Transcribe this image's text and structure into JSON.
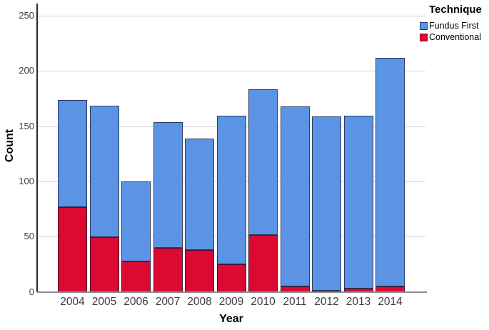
{
  "chart_data": {
    "type": "bar",
    "stacked": true,
    "title": "",
    "xlabel": "Year",
    "ylabel": "Count",
    "categories": [
      "2004",
      "2005",
      "2006",
      "2007",
      "2008",
      "2009",
      "2010",
      "2011",
      "2012",
      "2013",
      "2014"
    ],
    "series": [
      {
        "name": "Fundus First",
        "color": "#5B93E5",
        "border_color": "#2B3A64",
        "swatch_border": "#2B3A64",
        "values": [
          97,
          119,
          72,
          114,
          101,
          135,
          132,
          163,
          158,
          157,
          207
        ]
      },
      {
        "name": "Conventional",
        "color": "#DC0A33",
        "border_color": "#44102C",
        "swatch_border": "#7A0C20",
        "values": [
          77,
          50,
          28,
          40,
          38,
          25,
          52,
          5,
          1,
          3,
          5
        ]
      }
    ],
    "stack_totals": [
      174,
      169,
      100,
      154,
      139,
      160,
      184,
      168,
      159,
      160,
      212
    ],
    "yticks": [
      0,
      50,
      100,
      150,
      200,
      250
    ],
    "ylim": [
      0,
      250
    ],
    "grid": true,
    "legend": {
      "title": "Technique",
      "position": "top-right",
      "entries": [
        "Fundus First",
        "Conventional"
      ]
    },
    "colors": {
      "gridline": "#d4d4d4",
      "y_axis_line": "#2a2a2a",
      "x_axis_line": "#8f8f8f",
      "tick_text": "#3d3d3d",
      "axis_title_text": "#000000",
      "background": "#ffffff"
    }
  }
}
